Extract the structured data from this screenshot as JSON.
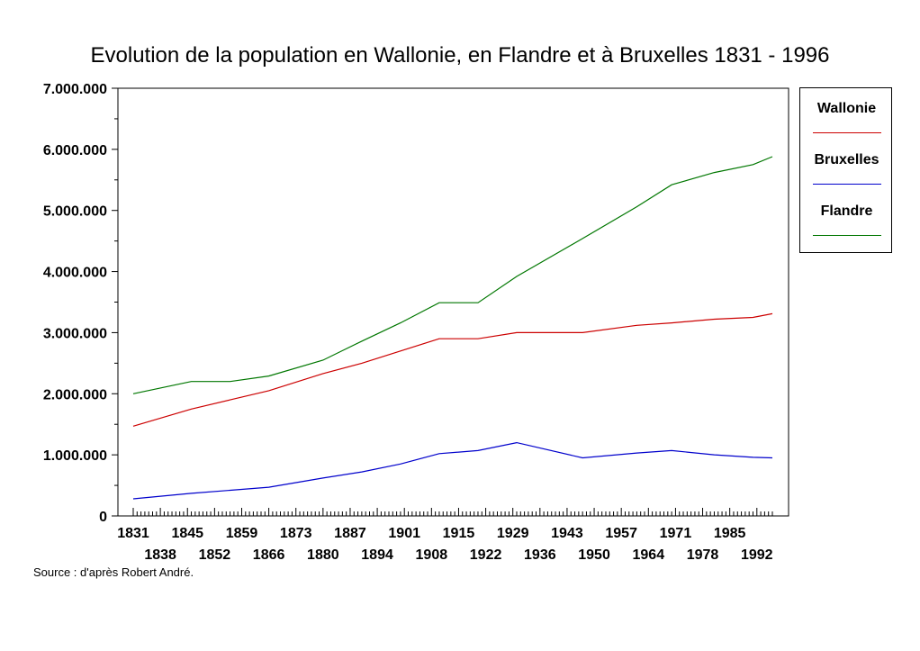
{
  "chart_data": {
    "type": "line",
    "title": "Evolution de la population en Wallonie, en Flandre et à Bruxelles 1831 - 1996",
    "xlabel": "",
    "ylabel": "",
    "xlim": [
      1831,
      1996
    ],
    "ylim": [
      0,
      7000000
    ],
    "x_ticks_row1": [
      "1831",
      "1845",
      "1859",
      "1873",
      "1887",
      "1901",
      "1915",
      "1929",
      "1943",
      "1957",
      "1971",
      "1985"
    ],
    "x_ticks_row2": [
      "1838",
      "1852",
      "1866",
      "1880",
      "1894",
      "1908",
      "1922",
      "1936",
      "1950",
      "1964",
      "1978",
      "1992"
    ],
    "y_ticks": [
      {
        "value": 0,
        "label": "0"
      },
      {
        "value": 1000000,
        "label": "1.000.000"
      },
      {
        "value": 2000000,
        "label": "2.000.000"
      },
      {
        "value": 3000000,
        "label": "3.000.000"
      },
      {
        "value": 4000000,
        "label": "4.000.000"
      },
      {
        "value": 5000000,
        "label": "5.000.000"
      },
      {
        "value": 6000000,
        "label": "6.000.000"
      },
      {
        "value": 7000000,
        "label": "7.000.000"
      }
    ],
    "legend_position": "right",
    "grid": false,
    "series": [
      {
        "name": "Wallonie",
        "color": "#cc0000",
        "x": [
          1831,
          1846,
          1856,
          1866,
          1880,
          1890,
          1900,
          1910,
          1920,
          1930,
          1947,
          1961,
          1970,
          1981,
          1991,
          1996
        ],
        "y": [
          1470000,
          1750000,
          1900000,
          2050000,
          2330000,
          2500000,
          2700000,
          2900000,
          2900000,
          3000000,
          3000000,
          3120000,
          3160000,
          3220000,
          3250000,
          3310000
        ]
      },
      {
        "name": "Bruxelles",
        "color": "#0000cc",
        "x": [
          1831,
          1846,
          1856,
          1866,
          1880,
          1890,
          1900,
          1910,
          1920,
          1930,
          1947,
          1961,
          1970,
          1981,
          1991,
          1996
        ],
        "y": [
          280000,
          370000,
          420000,
          470000,
          620000,
          720000,
          850000,
          1020000,
          1070000,
          1200000,
          950000,
          1030000,
          1070000,
          1000000,
          960000,
          950000
        ]
      },
      {
        "name": "Flandre",
        "color": "#007700",
        "x": [
          1831,
          1846,
          1856,
          1866,
          1880,
          1890,
          1900,
          1910,
          1920,
          1930,
          1947,
          1961,
          1970,
          1981,
          1991,
          1996
        ],
        "y": [
          2000000,
          2200000,
          2200000,
          2290000,
          2550000,
          2860000,
          3160000,
          3490000,
          3490000,
          3920000,
          4540000,
          5060000,
          5420000,
          5620000,
          5750000,
          5880000
        ]
      }
    ]
  },
  "source_note": "Source : d'après Robert André."
}
